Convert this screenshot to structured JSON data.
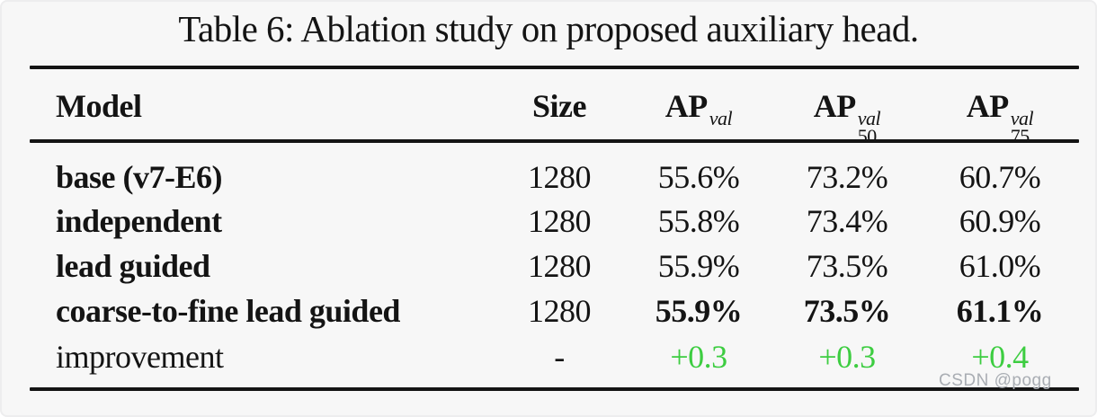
{
  "caption": "Table 6: Ablation study on proposed auxiliary head.",
  "columns": {
    "model": "Model",
    "size": "Size",
    "ap": {
      "base": "AP",
      "sup": "val",
      "sub": ""
    },
    "ap50": {
      "base": "AP",
      "sup": "val",
      "sub": "50"
    },
    "ap75": {
      "base": "AP",
      "sup": "val",
      "sub": "75"
    }
  },
  "rows": [
    {
      "model": "base (v7-E6)",
      "size": "1280",
      "ap": "55.6%",
      "ap50": "73.2%",
      "ap75": "60.7%"
    },
    {
      "model": "independent",
      "size": "1280",
      "ap": "55.8%",
      "ap50": "73.4%",
      "ap75": "60.9%"
    },
    {
      "model": "lead guided",
      "size": "1280",
      "ap": "55.9%",
      "ap50": "73.5%",
      "ap75": "61.0%"
    },
    {
      "model": "coarse-to-fine lead guided",
      "size": "1280",
      "ap": "55.9%",
      "ap50": "73.5%",
      "ap75": "61.1%"
    },
    {
      "model": "improvement",
      "size": "-",
      "ap": "+0.3",
      "ap50": "+0.3",
      "ap75": "+0.4"
    }
  ],
  "watermark": "CSDN @pogg",
  "colors": {
    "text": "#141414",
    "rule": "#141414",
    "improvement_green": "#3dcd41",
    "watermark": "#a9adb3",
    "background": "#f7f7f7"
  }
}
